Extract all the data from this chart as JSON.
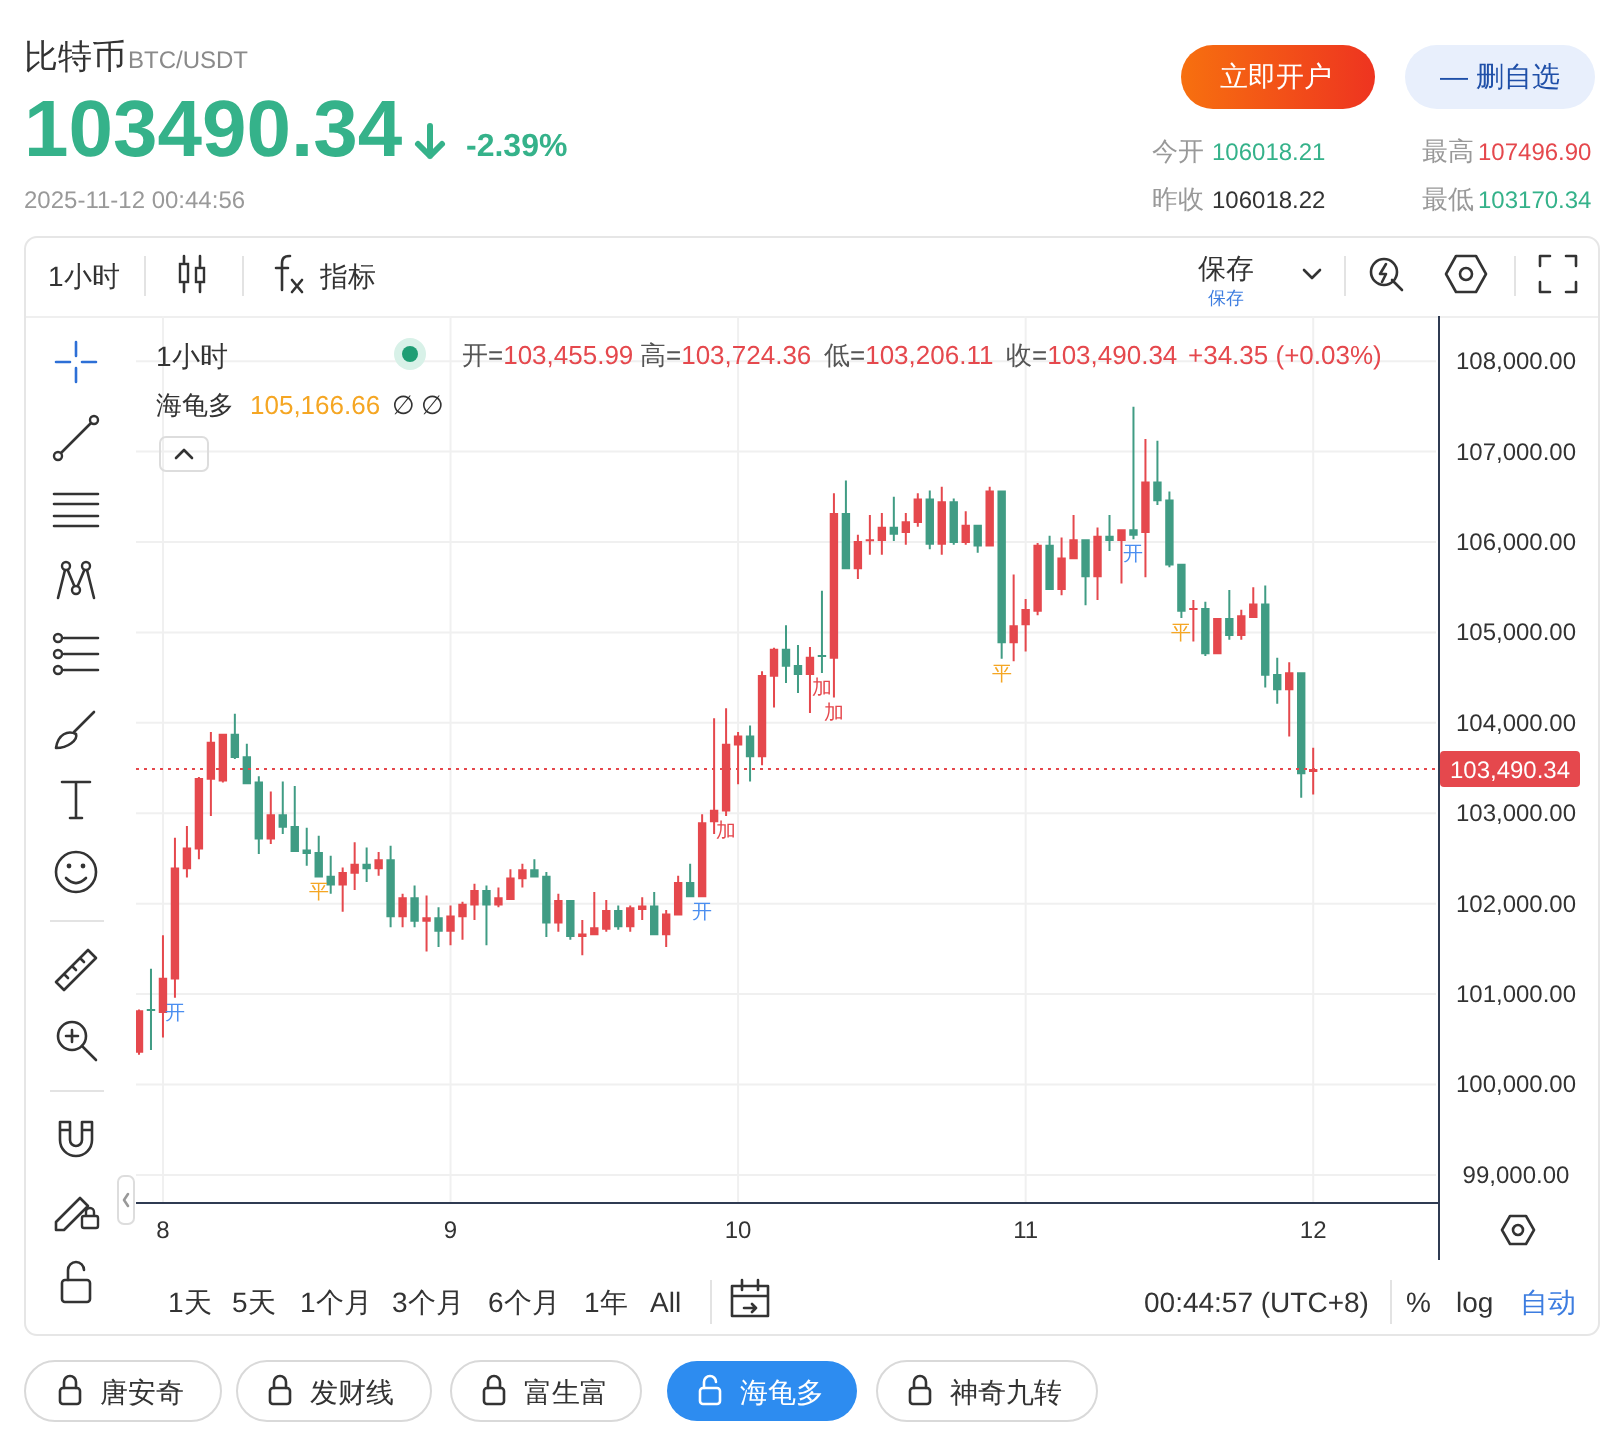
{
  "chart_data": {
    "type": "candlestick",
    "title": "比特币",
    "subtitle": "BTC/USDT",
    "x": [
      "2025-11-07T22:00",
      "2025-11-07T23:00",
      "2025-11-08T00:00",
      "2025-11-08T01:00",
      "2025-11-08T02:00",
      "2025-11-08T03:00",
      "2025-11-08T04:00",
      "2025-11-08T05:00",
      "2025-11-08T06:00",
      "2025-11-08T07:00",
      "2025-11-08T08:00",
      "2025-11-08T09:00",
      "2025-11-08T10:00",
      "2025-11-08T11:00",
      "2025-11-08T12:00",
      "2025-11-08T13:00",
      "2025-11-08T14:00",
      "2025-11-08T15:00",
      "2025-11-08T16:00",
      "2025-11-08T17:00",
      "2025-11-08T18:00",
      "2025-11-08T19:00",
      "2025-11-08T20:00",
      "2025-11-08T21:00",
      "2025-11-08T22:00",
      "2025-11-08T23:00",
      "2025-11-09T00:00",
      "2025-11-09T01:00",
      "2025-11-09T02:00",
      "2025-11-09T03:00",
      "2025-11-09T04:00",
      "2025-11-09T05:00",
      "2025-11-09T06:00",
      "2025-11-09T07:00",
      "2025-11-09T08:00",
      "2025-11-09T09:00",
      "2025-11-09T10:00",
      "2025-11-09T11:00",
      "2025-11-09T12:00",
      "2025-11-09T13:00",
      "2025-11-09T14:00",
      "2025-11-09T15:00",
      "2025-11-09T16:00",
      "2025-11-09T17:00",
      "2025-11-09T18:00",
      "2025-11-09T19:00",
      "2025-11-09T20:00",
      "2025-11-09T21:00",
      "2025-11-09T22:00",
      "2025-11-09T23:00",
      "2025-11-10T00:00",
      "2025-11-10T01:00",
      "2025-11-10T02:00",
      "2025-11-10T03:00",
      "2025-11-10T04:00",
      "2025-11-10T05:00",
      "2025-11-10T06:00",
      "2025-11-10T07:00",
      "2025-11-10T08:00",
      "2025-11-10T09:00",
      "2025-11-10T10:00",
      "2025-11-10T11:00",
      "2025-11-10T12:00",
      "2025-11-10T13:00",
      "2025-11-10T14:00",
      "2025-11-10T15:00",
      "2025-11-10T16:00",
      "2025-11-10T17:00",
      "2025-11-10T18:00",
      "2025-11-10T19:00",
      "2025-11-10T20:00",
      "2025-11-10T21:00",
      "2025-11-10T22:00",
      "2025-11-10T23:00",
      "2025-11-11T00:00",
      "2025-11-11T01:00",
      "2025-11-11T02:00",
      "2025-11-11T03:00",
      "2025-11-11T04:00",
      "2025-11-11T05:00",
      "2025-11-11T06:00",
      "2025-11-11T07:00",
      "2025-11-11T08:00",
      "2025-11-11T09:00",
      "2025-11-11T10:00",
      "2025-11-11T11:00",
      "2025-11-11T12:00",
      "2025-11-11T13:00",
      "2025-11-11T14:00",
      "2025-11-11T15:00",
      "2025-11-11T16:00",
      "2025-11-11T17:00",
      "2025-11-11T18:00",
      "2025-11-11T19:00",
      "2025-11-11T20:00",
      "2025-11-11T21:00",
      "2025-11-11T22:00",
      "2025-11-11T23:00",
      "2025-11-12T00:00"
    ],
    "ohlc": [
      [
        100350,
        100830,
        100330,
        100820
      ],
      [
        100830,
        101280,
        100380,
        100820
      ],
      [
        100790,
        101650,
        100520,
        101180
      ],
      [
        101160,
        102730,
        100960,
        102400
      ],
      [
        102380,
        102860,
        102290,
        102620
      ],
      [
        102600,
        103400,
        102490,
        103390
      ],
      [
        103370,
        103900,
        102970,
        103790
      ],
      [
        103350,
        103880,
        103340,
        103880
      ],
      [
        103880,
        104100,
        103600,
        103610
      ],
      [
        103630,
        103770,
        103320,
        103320
      ],
      [
        103350,
        103410,
        102550,
        102710
      ],
      [
        102710,
        103240,
        102660,
        102990
      ],
      [
        102990,
        103350,
        102770,
        102840
      ],
      [
        102860,
        103300,
        102570,
        102570
      ],
      [
        102600,
        102840,
        102420,
        102550
      ],
      [
        102570,
        102750,
        102290,
        102290
      ],
      [
        102310,
        102530,
        102110,
        102200
      ],
      [
        102200,
        102400,
        101910,
        102350
      ],
      [
        102330,
        102680,
        102150,
        102440
      ],
      [
        102440,
        102620,
        102240,
        102380
      ],
      [
        102380,
        102570,
        102310,
        102490
      ],
      [
        102490,
        102640,
        101740,
        101850
      ],
      [
        101850,
        102110,
        101740,
        102070
      ],
      [
        102070,
        102200,
        101740,
        101800
      ],
      [
        101800,
        102090,
        101470,
        101850
      ],
      [
        101850,
        101960,
        101520,
        101690
      ],
      [
        101690,
        101980,
        101540,
        101870
      ],
      [
        101850,
        102020,
        101600,
        102000
      ],
      [
        101980,
        102220,
        101820,
        102150
      ],
      [
        102150,
        102200,
        101540,
        101980
      ],
      [
        101980,
        102180,
        101960,
        102070
      ],
      [
        102040,
        102380,
        102040,
        102290
      ],
      [
        102270,
        102440,
        102180,
        102380
      ],
      [
        102380,
        102490,
        102290,
        102290
      ],
      [
        102310,
        102350,
        101630,
        101780
      ],
      [
        101780,
        102110,
        101690,
        102040
      ],
      [
        102040,
        102040,
        101600,
        101630
      ],
      [
        101630,
        101820,
        101430,
        101670
      ],
      [
        101650,
        102130,
        101650,
        101740
      ],
      [
        101710,
        102040,
        101690,
        101930
      ],
      [
        101930,
        101980,
        101710,
        101740
      ],
      [
        101740,
        101980,
        101690,
        101960
      ],
      [
        101930,
        102070,
        101820,
        101980
      ],
      [
        101980,
        102130,
        101650,
        101650
      ],
      [
        101650,
        101930,
        101520,
        101890
      ],
      [
        101870,
        102310,
        101870,
        102240
      ],
      [
        102240,
        102440,
        102070,
        102070
      ],
      [
        102070,
        102990,
        102070,
        102900
      ],
      [
        102900,
        104050,
        102770,
        103040
      ],
      [
        103020,
        104160,
        102970,
        103770
      ],
      [
        103750,
        103900,
        103320,
        103860
      ],
      [
        103860,
        103970,
        103350,
        103620
      ],
      [
        103620,
        104570,
        103530,
        104530
      ],
      [
        104510,
        104830,
        104170,
        104820
      ],
      [
        104820,
        105080,
        104440,
        104620
      ],
      [
        104640,
        104860,
        104330,
        104530
      ],
      [
        104530,
        104840,
        104110,
        104730
      ],
      [
        104750,
        105460,
        104550,
        104730
      ],
      [
        104710,
        106540,
        104280,
        106320
      ],
      [
        106320,
        106680,
        105700,
        105700
      ],
      [
        105700,
        106080,
        105590,
        106010
      ],
      [
        106010,
        106300,
        105860,
        106030
      ],
      [
        106010,
        106320,
        105860,
        106170
      ],
      [
        106170,
        106500,
        106010,
        106080
      ],
      [
        106100,
        106320,
        105970,
        106230
      ],
      [
        106210,
        106540,
        106170,
        106480
      ],
      [
        106480,
        106570,
        105920,
        105970
      ],
      [
        105970,
        106610,
        105860,
        106450
      ],
      [
        106450,
        106480,
        105970,
        105990
      ],
      [
        105990,
        106340,
        105970,
        106190
      ],
      [
        106190,
        106190,
        105880,
        105950
      ],
      [
        105950,
        106610,
        105950,
        106570
      ],
      [
        106570,
        106570,
        104710,
        104880
      ],
      [
        104880,
        105640,
        104680,
        105080
      ],
      [
        105080,
        105370,
        104790,
        105260
      ],
      [
        105230,
        105990,
        105190,
        105970
      ],
      [
        105970,
        106070,
        105470,
        105470
      ],
      [
        105470,
        106050,
        105410,
        105830
      ],
      [
        105810,
        106300,
        105810,
        106030
      ],
      [
        106030,
        106030,
        105300,
        105610
      ],
      [
        105610,
        106160,
        105360,
        106070
      ],
      [
        106070,
        106300,
        105900,
        106010
      ],
      [
        106010,
        106140,
        105540,
        106140
      ],
      [
        106140,
        107496.9,
        106030,
        106070
      ],
      [
        106100,
        107140,
        105610,
        106670
      ],
      [
        106670,
        107120,
        106410,
        106450
      ],
      [
        106470,
        106560,
        105720,
        105740
      ],
      [
        105760,
        105760,
        105160,
        105230
      ],
      [
        105250,
        105360,
        104900,
        105270
      ],
      [
        105270,
        105340,
        104740,
        104760
      ],
      [
        104760,
        105160,
        104760,
        105160
      ],
      [
        105160,
        105470,
        104920,
        104960
      ],
      [
        104960,
        105250,
        104920,
        105190
      ],
      [
        105160,
        105500,
        105160,
        105320
      ],
      [
        105320,
        105520,
        104390,
        104520
      ],
      [
        104540,
        104720,
        104210,
        104360
      ],
      [
        104360,
        104670,
        103850,
        104560
      ],
      [
        104560,
        104560,
        103170.34,
        103430
      ],
      [
        103455.99,
        103724.36,
        103206.11,
        103490.34
      ]
    ],
    "colors": [
      "#e5484d",
      "#409c84",
      "#e5484d",
      "#e5484d",
      "#e5484d",
      "#e5484d",
      "#e5484d",
      "#e5484d",
      "#409c84",
      "#409c84",
      "#409c84",
      "#e5484d",
      "#409c84",
      "#409c84",
      "#409c84",
      "#409c84",
      "#409c84",
      "#e5484d",
      "#e5484d",
      "#409c84",
      "#e5484d",
      "#409c84",
      "#e5484d",
      "#409c84",
      "#e5484d",
      "#409c84",
      "#e5484d",
      "#e5484d",
      "#e5484d",
      "#409c84",
      "#e5484d",
      "#e5484d",
      "#e5484d",
      "#409c84",
      "#409c84",
      "#e5484d",
      "#409c84",
      "#e5484d",
      "#e5484d",
      "#e5484d",
      "#409c84",
      "#e5484d",
      "#e5484d",
      "#409c84",
      "#e5484d",
      "#e5484d",
      "#409c84",
      "#e5484d",
      "#e5484d",
      "#e5484d",
      "#e5484d",
      "#409c84",
      "#e5484d",
      "#e5484d",
      "#409c84",
      "#409c84",
      "#e5484d",
      "#409c84",
      "#e5484d",
      "#409c84",
      "#e5484d",
      "#e5484d",
      "#e5484d",
      "#409c84",
      "#e5484d",
      "#e5484d",
      "#409c84",
      "#e5484d",
      "#409c84",
      "#e5484d",
      "#409c84",
      "#e5484d",
      "#409c84",
      "#e5484d",
      "#e5484d",
      "#e5484d",
      "#409c84",
      "#e5484d",
      "#e5484d",
      "#409c84",
      "#e5484d",
      "#409c84",
      "#e5484d",
      "#409c84",
      "#e5484d",
      "#409c84",
      "#409c84",
      "#409c84",
      "#e5484d",
      "#409c84",
      "#e5484d",
      "#409c84",
      "#e5484d",
      "#e5484d",
      "#409c84",
      "#409c84",
      "#e5484d",
      "#409c84",
      "#e5484d"
    ],
    "xlim": [
      "2025-11-07T21:45",
      "2025-11-12T10:15"
    ],
    "xticks": [
      {
        "value": "2025-11-08",
        "label": "8"
      },
      {
        "value": "2025-11-09",
        "label": "9"
      },
      {
        "value": "2025-11-10",
        "label": "10"
      },
      {
        "value": "2025-11-11",
        "label": "11"
      },
      {
        "value": "2025-11-12",
        "label": "12"
      }
    ],
    "ylim": [
      98700,
      108500
    ],
    "yticks": [
      {
        "value": 99000,
        "label": "99,000.00"
      },
      {
        "value": 100000,
        "label": "100,000.00"
      },
      {
        "value": 101000,
        "label": "101,000.00"
      },
      {
        "value": 102000,
        "label": "102,000.00"
      },
      {
        "value": 103000,
        "label": "103,000.00"
      },
      {
        "value": 104000,
        "label": "104,000.00"
      },
      {
        "value": 105000,
        "label": "105,000.00"
      },
      {
        "value": 106000,
        "label": "106,000.00"
      },
      {
        "value": 107000,
        "label": "107,000.00"
      },
      {
        "value": 108000,
        "label": "108,000.00"
      }
    ],
    "grid": true,
    "ref_lines": [
      {
        "axis": "y",
        "value": 103490.34,
        "label": "103,490.34",
        "color": "#e5484d",
        "line_style": "dotted"
      }
    ],
    "annotations": [
      "103490.34",
      "-2.39%",
      "2025-11-12 00:44:56",
      "立即开户",
      "— 删自选",
      "今开",
      "106018.21",
      "最高",
      "107496.90",
      "昨收",
      "106018.22",
      "最低",
      "103170.34",
      "1小时",
      "指标",
      "保存",
      "保存",
      "1小时",
      "开=103,455.99",
      "高=103,724.36",
      "低=103,206.11",
      "收=103,490.34",
      "+34.35 (+0.03%)",
      "海龟多",
      "105,166.66",
      "∅ ∅",
      "1天",
      "5天",
      "1个月",
      "3个月",
      "6个月",
      "1年",
      "All",
      "00:44:57 (UTC+8)",
      "%",
      "log",
      "自动",
      "唐安奇",
      "发财线",
      "富生富",
      "海龟多",
      "神奇九转",
      {
        "text": "开",
        "x": "2025-11-08T01:00",
        "y": 100960
      },
      {
        "text": "平",
        "x": "2025-11-08T13:00",
        "y": 102290
      },
      {
        "text": "开",
        "x": "2025-11-09T21:00",
        "y": 102070
      },
      {
        "text": "加",
        "x": "2025-11-09T23:00",
        "y": 102970
      },
      {
        "text": "加",
        "x": "2025-11-10T07:00",
        "y": 104550
      },
      {
        "text": "加",
        "x": "2025-11-10T08:00",
        "y": 104280
      },
      {
        "text": "平",
        "x": "2025-11-10T22:00",
        "y": 104710
      },
      {
        "text": "开",
        "x": "2025-11-11T09:00",
        "y": 106030
      },
      {
        "text": "平",
        "x": "2025-11-11T13:00",
        "y": 105160
      }
    ]
  }
}
